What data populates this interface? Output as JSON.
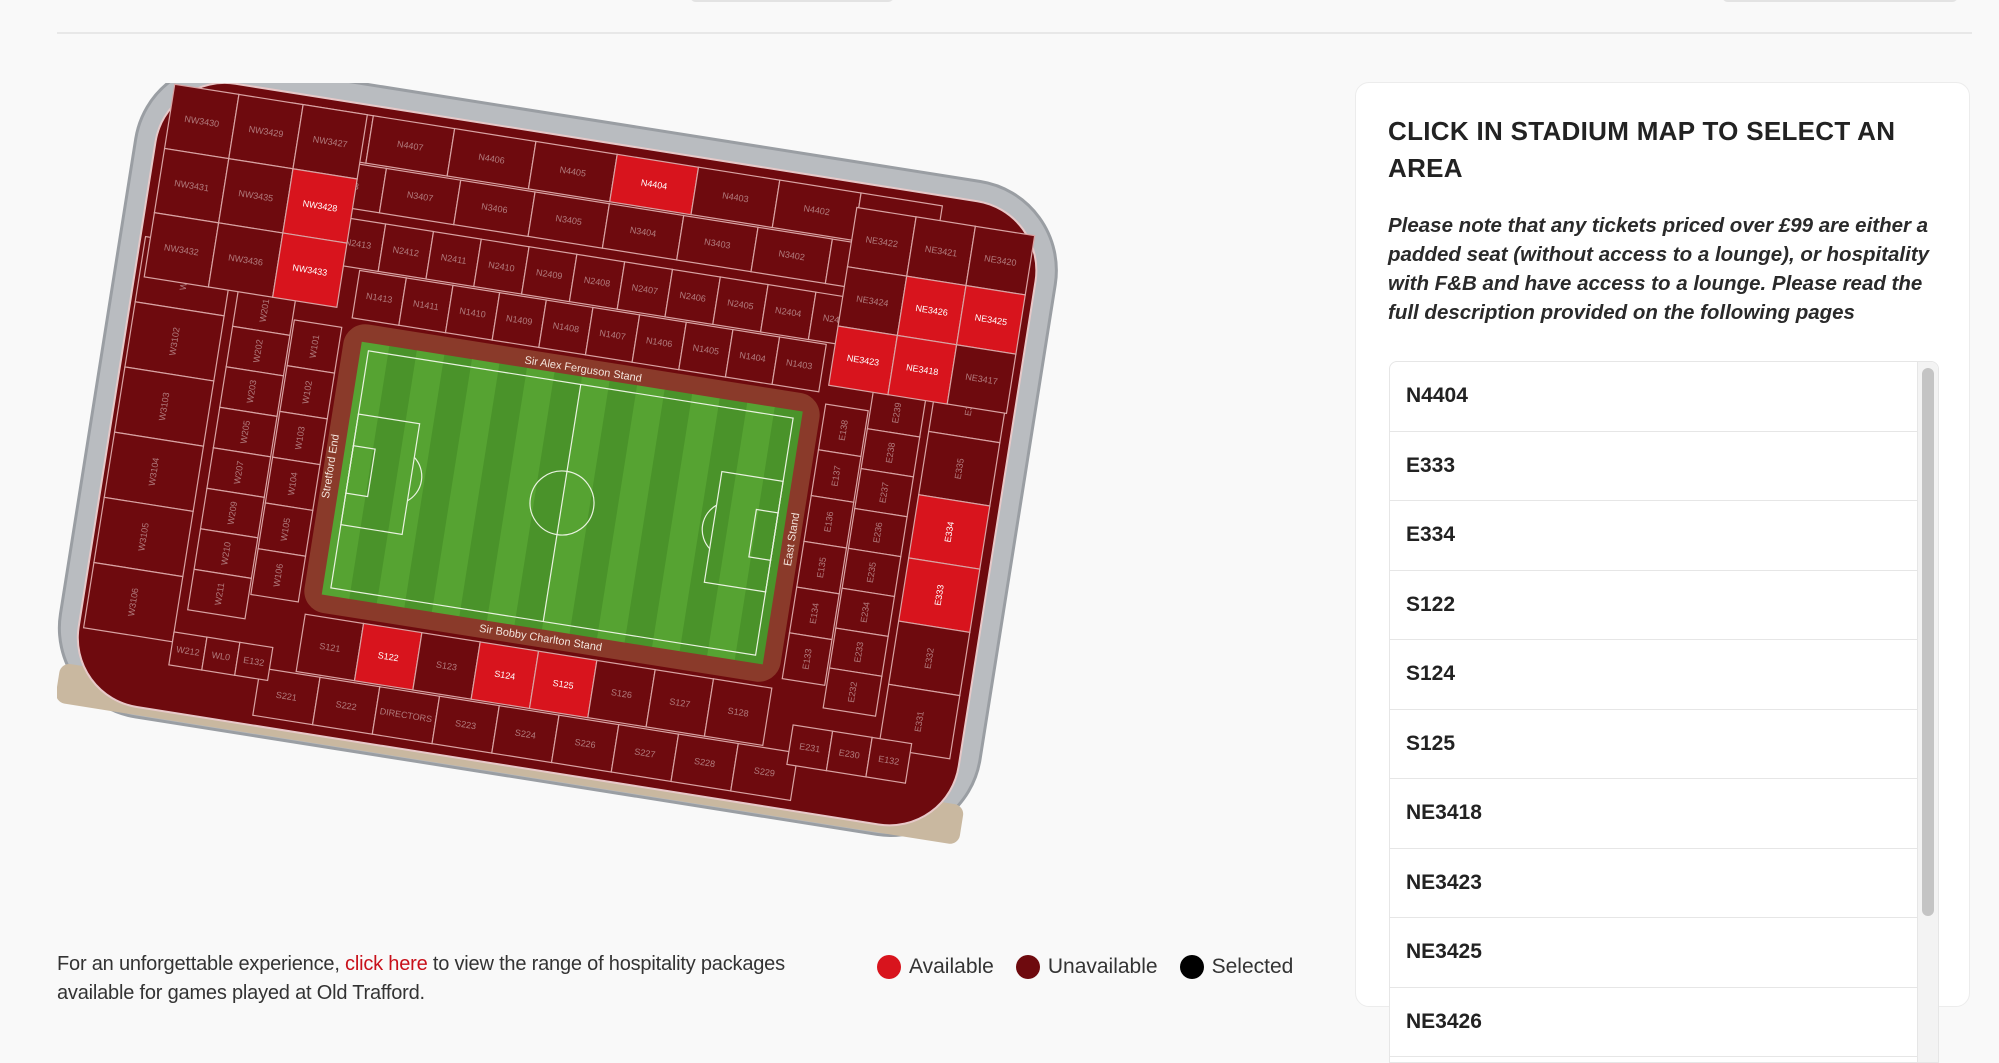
{
  "colors": {
    "available": "#d8141d",
    "unavailable": "#6e0a0e",
    "selected": "#000000",
    "link": "#c8101a",
    "pitch": "#4f9a2c",
    "track": "#8a3a2a",
    "shell": "#b9bcc0"
  },
  "stadium": {
    "stand_names": {
      "north": "Sir Alex Ferguson Stand",
      "south": "Sir Bobby Charlton Stand",
      "west": "Stretford End",
      "east": "East Stand"
    },
    "available_sections": [
      "N4404",
      "E333",
      "E334",
      "S122",
      "S124",
      "S125",
      "NE3418",
      "NE3423",
      "NE3425",
      "NE3426",
      "NW3428",
      "NW3433"
    ],
    "north": [
      [
        "N1413",
        "N1411",
        "N1410",
        "N1409",
        "N1408",
        "N1407",
        "N1406",
        "N1405",
        "N1404",
        "N1403"
      ],
      [
        "N2413",
        "N2412",
        "N2411",
        "N2410",
        "N2409",
        "N2408",
        "N2407",
        "N2406",
        "N2405",
        "N2404",
        "N2403"
      ],
      [
        "N3408",
        "N3407",
        "N3406",
        "N3405",
        "N3404",
        "N3403",
        "N3402",
        "N3401"
      ],
      [
        "N4408",
        "N4407",
        "N4406",
        "N4405",
        "N4404",
        "N4403",
        "N4402",
        "N4401"
      ]
    ],
    "south": [
      [
        "S121",
        "S122",
        "S123",
        "S124",
        "S125",
        "S126",
        "S127",
        "S128"
      ],
      [
        "S221",
        "S222",
        "DIRECTORS",
        "S223",
        "S224",
        "S226",
        "S227",
        "S228",
        "S229"
      ]
    ],
    "west": [
      [
        "W101",
        "W102",
        "W103",
        "W104",
        "W105",
        "W106"
      ],
      [
        "W201",
        "W202",
        "W203",
        "W205",
        "W207",
        "W209",
        "W210",
        "W211"
      ],
      [
        "W3101",
        "W3102",
        "W3103",
        "W3104",
        "W3105",
        "W3106"
      ]
    ],
    "east": [
      [
        "E138",
        "E137",
        "E136",
        "E135",
        "E134",
        "E133"
      ],
      [
        "E239",
        "E238",
        "E237",
        "E236",
        "E235",
        "E234",
        "E233",
        "E232"
      ],
      [
        "E336",
        "E335",
        "E334",
        "E333",
        "E332",
        "E331"
      ]
    ],
    "corner_nw": [
      "NW3430",
      "NW3429",
      "NW3427",
      "NW3431",
      "NW3435",
      "NW3428",
      "NW3432",
      "NW3436",
      "NW3433"
    ],
    "corner_ne": [
      "NE3422",
      "NE3421",
      "NE3420",
      "NE3424",
      "NE3426",
      "NE3425",
      "NE3423",
      "NE3418",
      "NE3417"
    ],
    "corner_sw": [
      "W212",
      "WL0",
      "E132"
    ],
    "corner_se": [
      "E231",
      "E230",
      "E132"
    ]
  },
  "footer": {
    "text_before": "For an unforgettable experience, ",
    "link_text": "click here",
    "text_after": " to view the range of hospitality packages available for games played at Old Trafford."
  },
  "legend": [
    {
      "label": "Available",
      "color": "#d8141d"
    },
    {
      "label": "Unavailable",
      "color": "#6e0a0e"
    },
    {
      "label": "Selected",
      "color": "#000000"
    }
  ],
  "panel": {
    "title": "CLICK IN STADIUM MAP TO SELECT AN AREA",
    "note": "Please note that any tickets priced over £99 are either a padded seat (without access to a lounge), or hospitality with F&B and have access to a lounge. Please read the full description provided on the following pages",
    "areas": [
      "N4404",
      "E333",
      "E334",
      "S122",
      "S124",
      "S125",
      "NE3418",
      "NE3423",
      "NE3425",
      "NE3426"
    ]
  }
}
